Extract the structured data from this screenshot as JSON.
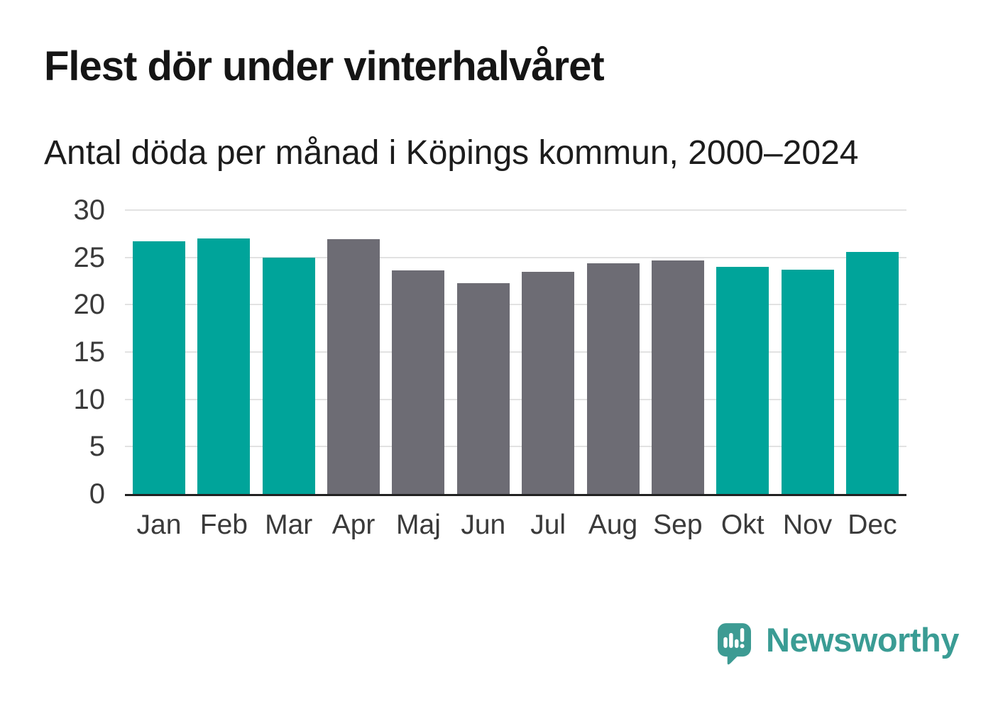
{
  "header": {
    "title": "Flest dör under vinterhalvåret",
    "subtitle": "Antal döda per månad i Köpings kommun, 2000–2024"
  },
  "chart_data": {
    "type": "bar",
    "title": "Flest dör under vinterhalvåret",
    "subtitle": "Antal döda per månad i Köpings kommun, 2000–2024",
    "categories": [
      "Jan",
      "Feb",
      "Mar",
      "Apr",
      "Maj",
      "Jun",
      "Jul",
      "Aug",
      "Sep",
      "Okt",
      "Nov",
      "Dec"
    ],
    "values": [
      26.7,
      27.0,
      25.0,
      26.9,
      23.6,
      22.3,
      23.5,
      24.4,
      24.7,
      24.0,
      23.7,
      25.6
    ],
    "highlighted": [
      true,
      true,
      true,
      false,
      false,
      false,
      false,
      false,
      false,
      true,
      true,
      true
    ],
    "xlabel": "",
    "ylabel": "",
    "ylim": [
      0,
      30
    ],
    "yticks": [
      0,
      5,
      10,
      15,
      20,
      25,
      30
    ],
    "grid": true,
    "legend": false,
    "colors": {
      "highlight": "#00a49a",
      "default": "#6d6c74"
    }
  },
  "footer": {
    "brand": "Newsworthy",
    "logo_icon": "newsworthy-speech-bubble-bar-chart-icon"
  },
  "colors": {
    "background": "#ffffff",
    "bar_teal": "#00a49a",
    "bar_gray": "#6d6c74",
    "brand_teal": "#3a9c94",
    "axis_line": "#222222",
    "gridline": "#e2e2e2",
    "title_text": "#151515",
    "tick_text": "#3a3a3a"
  }
}
